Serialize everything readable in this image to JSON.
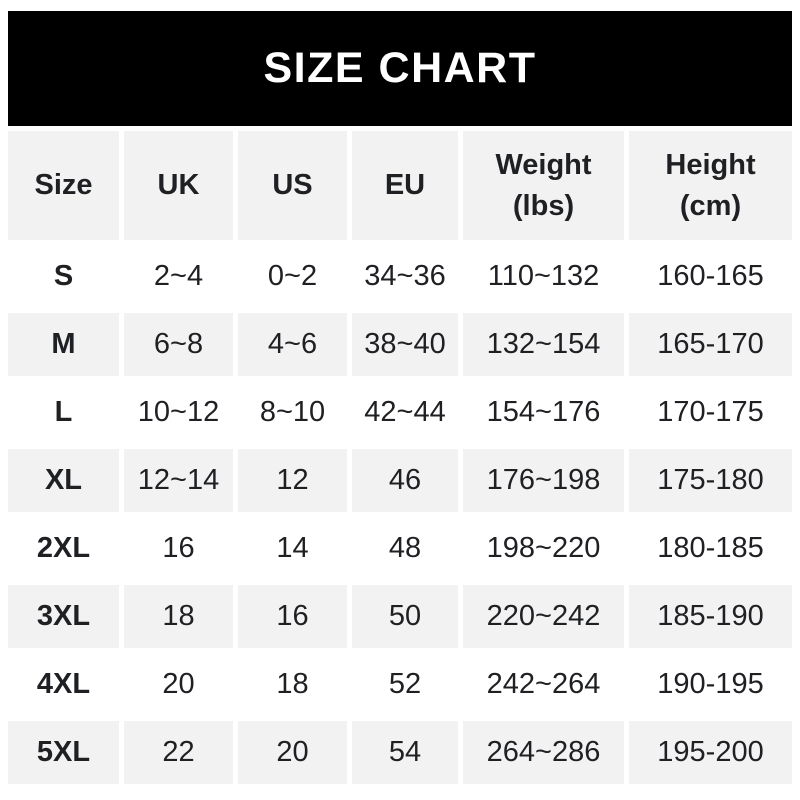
{
  "title": "SIZE CHART",
  "colors": {
    "band_bg": "#000000",
    "band_text": "#ffffff",
    "row_bg": "#ffffff",
    "row_alt_bg": "#f2f2f2",
    "text_color": "#1f2023"
  },
  "chart_data": {
    "type": "table",
    "title": "SIZE CHART",
    "columns": [
      "Size",
      "UK",
      "US",
      "EU",
      "Weight (lbs)",
      "Height (cm)"
    ],
    "column_header_lines": [
      [
        "Size"
      ],
      [
        "UK"
      ],
      [
        "US"
      ],
      [
        "EU"
      ],
      [
        "Weight",
        "(lbs)"
      ],
      [
        "Height",
        "(cm)"
      ]
    ],
    "rows": [
      [
        "S",
        "2~4",
        "0~2",
        "34~36",
        "110~132",
        "160-165"
      ],
      [
        "M",
        "6~8",
        "4~6",
        "38~40",
        "132~154",
        "165-170"
      ],
      [
        "L",
        "10~12",
        "8~10",
        "42~44",
        "154~176",
        "170-175"
      ],
      [
        "XL",
        "12~14",
        "12",
        "46",
        "176~198",
        "175-180"
      ],
      [
        "2XL",
        "16",
        "14",
        "48",
        "198~220",
        "180-185"
      ],
      [
        "3XL",
        "18",
        "16",
        "50",
        "220~242",
        "185-190"
      ],
      [
        "4XL",
        "20",
        "18",
        "52",
        "242~264",
        "190-195"
      ],
      [
        "5XL",
        "22",
        "20",
        "54",
        "264~286",
        "195-200"
      ]
    ],
    "layout": {
      "header_row_shaded": true,
      "alternating_shaded_rows": [
        "M",
        "XL",
        "3XL",
        "5XL"
      ]
    }
  }
}
